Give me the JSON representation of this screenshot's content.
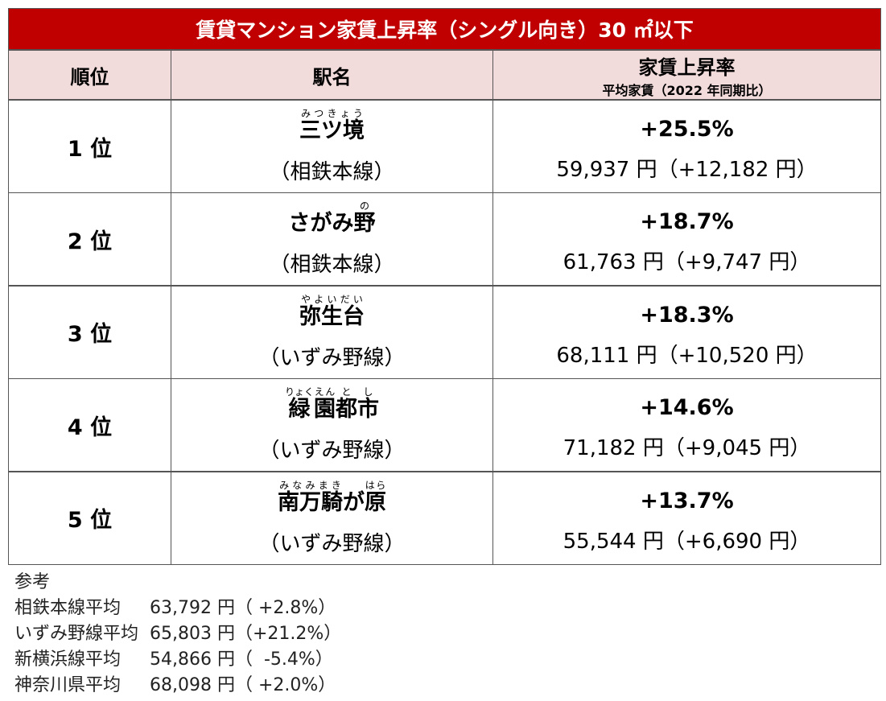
{
  "header": {
    "title": "賃貸マンション家賃上昇率（シングル向き）30 ㎡以下"
  },
  "table": {
    "columns": [
      "順位",
      "駅名",
      {
        "main": "家賃上昇率",
        "sub": "平均家賃（2022 年同期比）"
      }
    ],
    "rows": [
      {
        "rank": "1 位",
        "station": [
          {
            "base": "三ツ境",
            "ruby": "みつきょう"
          }
        ],
        "line": "（相鉄本線）",
        "rate": "+25.5%",
        "rent": "59,937 円（+12,182 円）"
      },
      {
        "rank": "2 位",
        "station": [
          {
            "base": "さがみ"
          },
          {
            "base": "野",
            "ruby": "の"
          }
        ],
        "line": "（相鉄本線）",
        "rate": "+18.7%",
        "rent": "61,763 円（+9,747 円）"
      },
      {
        "rank": "3 位",
        "station": [
          {
            "base": "弥生台",
            "ruby": "やよいだい"
          }
        ],
        "line": "（いずみ野線）",
        "rate": "+18.3%",
        "rent": "68,111 円（+10,520 円）"
      },
      {
        "rank": "4 位",
        "station": [
          {
            "base": "緑",
            "ruby": "りょく"
          },
          {
            "base": "園",
            "ruby": "えん"
          },
          {
            "base": "都",
            "ruby": "と"
          },
          {
            "base": "市",
            "ruby": "し"
          }
        ],
        "line": "（いずみ野線）",
        "rate": "+14.6%",
        "rent": "71,182 円（+9,045 円）"
      },
      {
        "rank": "5 位",
        "station": [
          {
            "base": "南万騎",
            "ruby": "みなみまき"
          },
          {
            "base": "が"
          },
          {
            "base": "原",
            "ruby": "はら"
          }
        ],
        "line": "（いずみ野線）",
        "rate": "+13.7%",
        "rent": "55,544 円（+6,690 円）"
      }
    ]
  },
  "notes": {
    "title": "参考",
    "items": [
      [
        "相鉄本線平均",
        "63,792 円（ +2.8%）"
      ],
      [
        "いずみ野線平均",
        "65,803 円（+21.2%）"
      ],
      [
        "新横浜線平均",
        "54,866 円（  -5.4%）"
      ],
      [
        "神奈川県平均",
        "68,098 円（ +2.0%）"
      ]
    ]
  }
}
